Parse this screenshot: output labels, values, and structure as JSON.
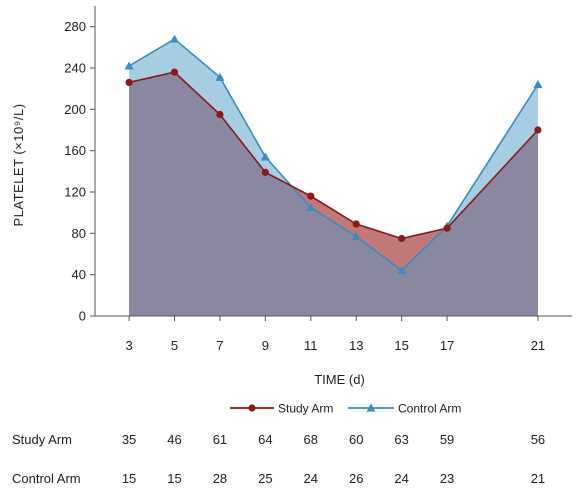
{
  "chart_data": {
    "type": "area",
    "x": [
      3,
      5,
      7,
      9,
      11,
      13,
      15,
      17,
      21
    ],
    "xlabel": "TIME (d)",
    "ylabel": "PLATELET (×10⁹/L)",
    "xlim": [
      1.5,
      22.5
    ],
    "ylim": [
      0,
      300
    ],
    "yticks": [
      0,
      40,
      80,
      120,
      160,
      200,
      240,
      280
    ],
    "xticks": [
      3,
      5,
      7,
      9,
      11,
      13,
      15,
      17,
      21
    ],
    "grid": false,
    "legend_position": "bottom",
    "series": [
      {
        "name": "Study Arm",
        "values": [
          226,
          236,
          195,
          139,
          116,
          89,
          75,
          85,
          180
        ],
        "color": "#8b1a1a",
        "fill": "#c07878",
        "marker": "circle"
      },
      {
        "name": "Control Arm",
        "values": [
          242,
          268,
          231,
          154,
          105,
          77,
          44,
          87,
          224
        ],
        "color": "#3a8dbf",
        "fill": "#a7cde3",
        "marker": "triangle"
      }
    ]
  },
  "number_at_risk": [
    {
      "label": "Study Arm",
      "values": [
        "35",
        "46",
        "61",
        "64",
        "68",
        "60",
        "63",
        "59",
        "56"
      ]
    },
    {
      "label": "Control Arm",
      "values": [
        "15",
        "15",
        "28",
        "25",
        "24",
        "26",
        "24",
        "23",
        "21"
      ]
    }
  ],
  "colors": {
    "overlap": "#8a88a0",
    "axis": "#555555"
  }
}
